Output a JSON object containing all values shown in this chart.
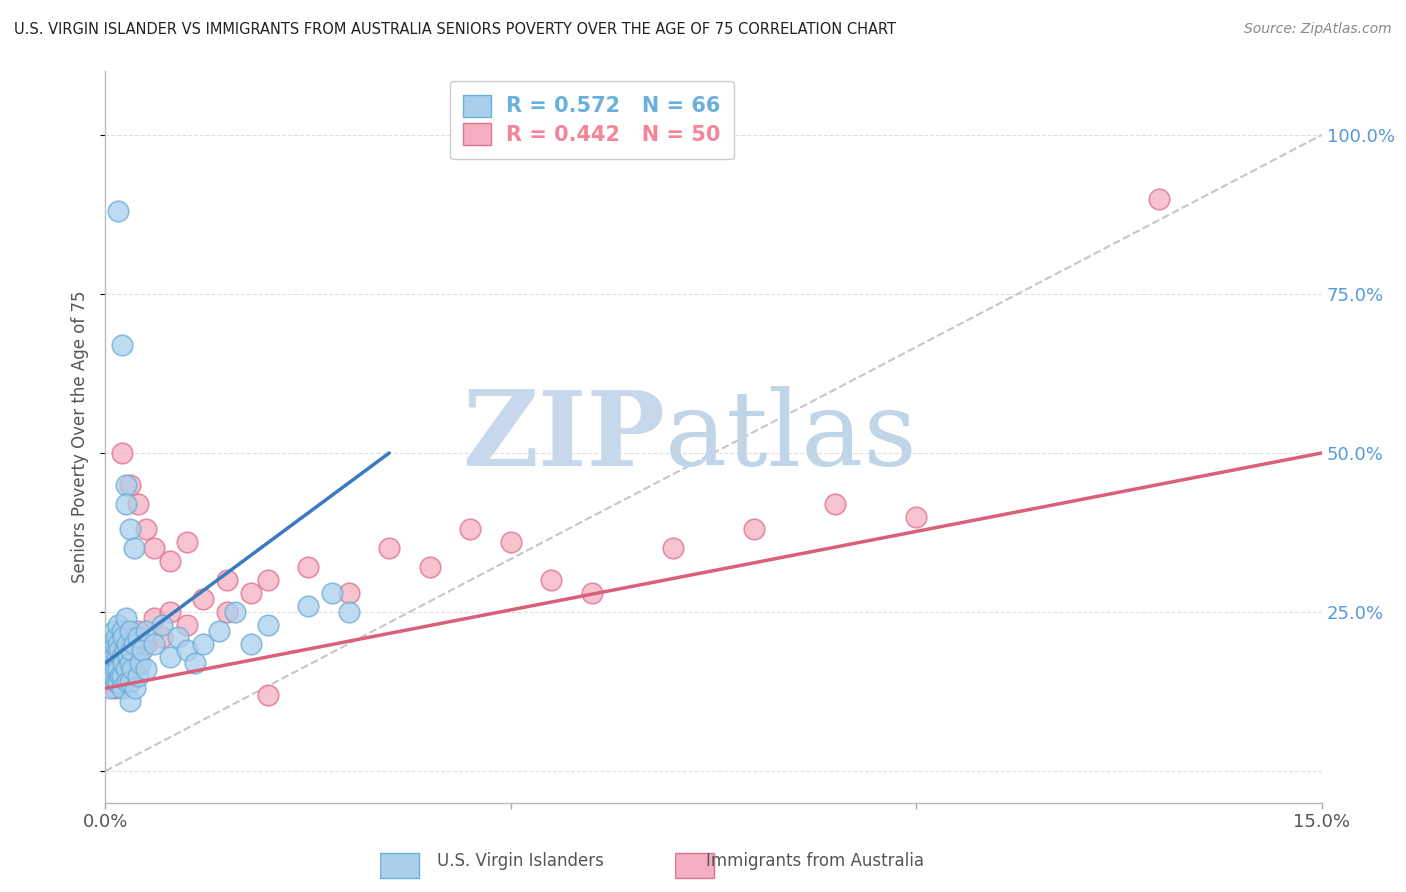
{
  "title": "U.S. VIRGIN ISLANDER VS IMMIGRANTS FROM AUSTRALIA SENIORS POVERTY OVER THE AGE OF 75 CORRELATION CHART",
  "source": "Source: ZipAtlas.com",
  "ylabel": "Seniors Poverty Over the Age of 75",
  "yticks": [
    0.0,
    0.25,
    0.5,
    0.75,
    1.0
  ],
  "ytick_labels": [
    "",
    "25.0%",
    "50.0%",
    "75.0%",
    "100.0%"
  ],
  "xlim": [
    0.0,
    0.15
  ],
  "ylim": [
    -0.05,
    1.1
  ],
  "watermark_zip": "ZIP",
  "watermark_atlas": "atlas",
  "legend_entries": [
    {
      "label": "R = 0.572   N = 66",
      "color": "#6ab0dc"
    },
    {
      "label": "R = 0.442   N = 50",
      "color": "#f4849a"
    }
  ],
  "blue_scatter_x": [
    0.0005,
    0.0005,
    0.0007,
    0.0008,
    0.0008,
    0.001,
    0.001,
    0.001,
    0.0012,
    0.0012,
    0.0013,
    0.0013,
    0.0014,
    0.0015,
    0.0015,
    0.0015,
    0.0016,
    0.0016,
    0.0017,
    0.0018,
    0.002,
    0.002,
    0.002,
    0.002,
    0.0022,
    0.0022,
    0.0024,
    0.0025,
    0.0025,
    0.0026,
    0.0027,
    0.0028,
    0.003,
    0.003,
    0.003,
    0.003,
    0.0032,
    0.0033,
    0.0035,
    0.0037,
    0.004,
    0.004,
    0.0042,
    0.0045,
    0.005,
    0.005,
    0.006,
    0.007,
    0.008,
    0.009,
    0.01,
    0.011,
    0.012,
    0.014,
    0.016,
    0.018,
    0.02,
    0.025,
    0.028,
    0.03,
    0.0015,
    0.002,
    0.0025,
    0.0025,
    0.003,
    0.0035
  ],
  "blue_scatter_y": [
    0.17,
    0.13,
    0.16,
    0.19,
    0.15,
    0.22,
    0.18,
    0.15,
    0.2,
    0.16,
    0.21,
    0.14,
    0.18,
    0.23,
    0.17,
    0.14,
    0.2,
    0.16,
    0.19,
    0.15,
    0.22,
    0.18,
    0.15,
    0.13,
    0.21,
    0.17,
    0.19,
    0.24,
    0.16,
    0.2,
    0.14,
    0.18,
    0.22,
    0.17,
    0.14,
    0.11,
    0.19,
    0.16,
    0.2,
    0.13,
    0.21,
    0.15,
    0.17,
    0.19,
    0.22,
    0.16,
    0.2,
    0.23,
    0.18,
    0.21,
    0.19,
    0.17,
    0.2,
    0.22,
    0.25,
    0.2,
    0.23,
    0.26,
    0.28,
    0.25,
    0.88,
    0.67,
    0.45,
    0.42,
    0.38,
    0.35
  ],
  "pink_scatter_x": [
    0.0005,
    0.0008,
    0.001,
    0.0012,
    0.0013,
    0.0015,
    0.0016,
    0.0018,
    0.002,
    0.002,
    0.0022,
    0.0025,
    0.0027,
    0.003,
    0.003,
    0.0032,
    0.0035,
    0.004,
    0.004,
    0.005,
    0.006,
    0.007,
    0.008,
    0.01,
    0.012,
    0.015,
    0.018,
    0.02,
    0.025,
    0.03,
    0.035,
    0.04,
    0.045,
    0.05,
    0.055,
    0.06,
    0.07,
    0.08,
    0.09,
    0.1,
    0.002,
    0.003,
    0.004,
    0.005,
    0.006,
    0.008,
    0.01,
    0.015,
    0.02,
    0.13
  ],
  "pink_scatter_y": [
    0.14,
    0.16,
    0.18,
    0.13,
    0.19,
    0.15,
    0.21,
    0.16,
    0.2,
    0.14,
    0.17,
    0.22,
    0.15,
    0.19,
    0.14,
    0.2,
    0.16,
    0.22,
    0.18,
    0.2,
    0.24,
    0.21,
    0.25,
    0.23,
    0.27,
    0.25,
    0.28,
    0.3,
    0.32,
    0.28,
    0.35,
    0.32,
    0.38,
    0.36,
    0.3,
    0.28,
    0.35,
    0.38,
    0.42,
    0.4,
    0.5,
    0.45,
    0.42,
    0.38,
    0.35,
    0.33,
    0.36,
    0.3,
    0.12,
    0.9
  ],
  "blue_line_x": [
    0.0,
    0.035
  ],
  "blue_line_y": [
    0.17,
    0.5
  ],
  "pink_line_x": [
    0.0,
    0.15
  ],
  "pink_line_y": [
    0.13,
    0.5
  ],
  "diag_line_x": [
    0.0,
    0.15
  ],
  "diag_line_y": [
    0.0,
    1.0
  ],
  "blue_color": "#aacfed",
  "blue_edge_color": "#6baed6",
  "pink_color": "#f4afc0",
  "pink_edge_color": "#e07090",
  "blue_line_color": "#3a7abf",
  "pink_line_color": "#d95f7a",
  "diag_color": "#c0c0c0",
  "grid_color": "#e0e0e0",
  "title_color": "#222222",
  "source_color": "#888888",
  "right_tick_color": "#5599dd",
  "watermark_color_zip": "#c8d8ec",
  "watermark_color_atlas": "#c0d5e8",
  "background_color": "#ffffff"
}
